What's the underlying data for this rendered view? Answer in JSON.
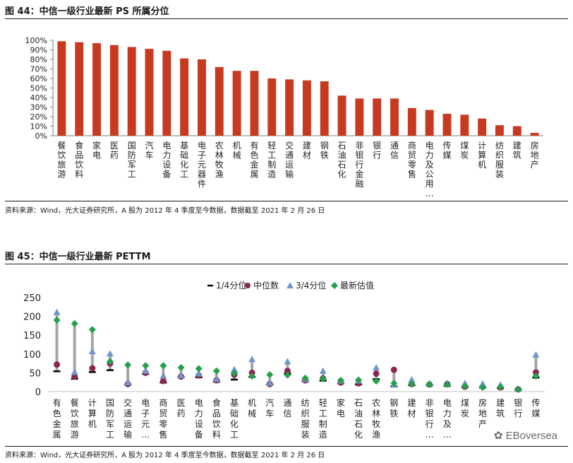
{
  "chart1": {
    "figure_title": "图 44：中信一级行业最新 PS 所属分位",
    "source": "资料来源：Wind，光大证券研究所，A 股为 2012 年 4 季度至今数据，数据截至 2021 年 2 月 26 日",
    "colors": {
      "bar": "#c83a1f"
    }
  },
  "chart2": {
    "figure_title": "图 45：中信一级行业最新 PETTM",
    "source": "资料来源：Wind，光大证券研究所，A 股为 2012 年 4 季度至今数据，数据截至 2021 年 2 月 26 日",
    "colors": {
      "q1": "#000000",
      "median": "#8b2651",
      "q3": "#6f95cc",
      "latest": "#22a14a",
      "range_line": "#a6a6a6"
    }
  },
  "watermark": "EBoversea",
  "chart_data": [
    {
      "type": "bar",
      "title": "图 44：中信一级行业最新 PS 所属分位",
      "categories": [
        "餐饮旅游",
        "食品饮料",
        "家电",
        "医药",
        "国防军工",
        "汽车",
        "电力设备",
        "基础化工",
        "电子元器件",
        "农林牧渔",
        "机械",
        "有色金属",
        "轻工制造",
        "交通运输",
        "建材",
        "钢铁",
        "石油石化",
        "非银行金融",
        "银行",
        "通信",
        "商贸零售",
        "电力及公用…",
        "传媒",
        "煤炭",
        "计算机",
        "纺织服装",
        "建筑",
        "房地产"
      ],
      "values": [
        99,
        98,
        97,
        95,
        93,
        91,
        89,
        81,
        80,
        72,
        68,
        68,
        60,
        59,
        58,
        57,
        42,
        39,
        39,
        39,
        29,
        27,
        23,
        22,
        18,
        11,
        10,
        3
      ],
      "yticks": [
        "0%",
        "10%",
        "20%",
        "30%",
        "40%",
        "50%",
        "60%",
        "70%",
        "80%",
        "90%",
        "100%"
      ],
      "ylim": [
        0,
        100
      ],
      "xlabel": "",
      "ylabel": ""
    },
    {
      "type": "scatter",
      "title": "图 45：中信一级行业最新 PETTM",
      "categories": [
        "有色金属",
        "餐饮旅游",
        "计算机",
        "国防军工",
        "交通运输",
        "电子元…",
        "商贸零售",
        "医药",
        "电力设备",
        "食品饮料",
        "基础化工",
        "机械",
        "汽车",
        "通信",
        "纺织服装",
        "轻工制造",
        "家电",
        "石油石化",
        "农林牧渔",
        "钢铁",
        "建材",
        "非银行…",
        "电力及…",
        "煤炭",
        "房地产",
        "建筑",
        "银行",
        "传媒"
      ],
      "legend": [
        "1/4分位",
        "中位数",
        "3/4分位",
        "最新估值"
      ],
      "series": [
        {
          "name": "1/4分位",
          "values": [
            54,
            34,
            52,
            57,
            18,
            47,
            24,
            38,
            38,
            26,
            32,
            39,
            18,
            48,
            27,
            29,
            22,
            19,
            33,
            14,
            17,
            16,
            15,
            12,
            11,
            9,
            5,
            37
          ]
        },
        {
          "name": "中位数",
          "values": [
            72,
            40,
            62,
            75,
            20,
            50,
            28,
            40,
            43,
            30,
            45,
            50,
            20,
            55,
            30,
            35,
            24,
            22,
            48,
            58,
            20,
            19,
            20,
            13,
            13,
            11,
            6,
            51
          ]
        },
        {
          "name": "3/4分位",
          "values": [
            211,
            52,
            107,
            101,
            24,
            55,
            42,
            43,
            48,
            33,
            59,
            86,
            23,
            80,
            33,
            55,
            29,
            29,
            64,
            18,
            32,
            22,
            22,
            22,
            21,
            18,
            8,
            98
          ]
        },
        {
          "name": "最新估值",
          "values": [
            190,
            181,
            165,
            80,
            71,
            69,
            69,
            64,
            61,
            55,
            49,
            41,
            45,
            44,
            36,
            34,
            30,
            31,
            28,
            22,
            20,
            19,
            19,
            14,
            11,
            12,
            6,
            41
          ]
        }
      ],
      "yticks": [
        "0",
        "50",
        "100",
        "150",
        "200",
        "250"
      ],
      "ylim": [
        0,
        250
      ],
      "xlabel": "",
      "ylabel": ""
    }
  ]
}
